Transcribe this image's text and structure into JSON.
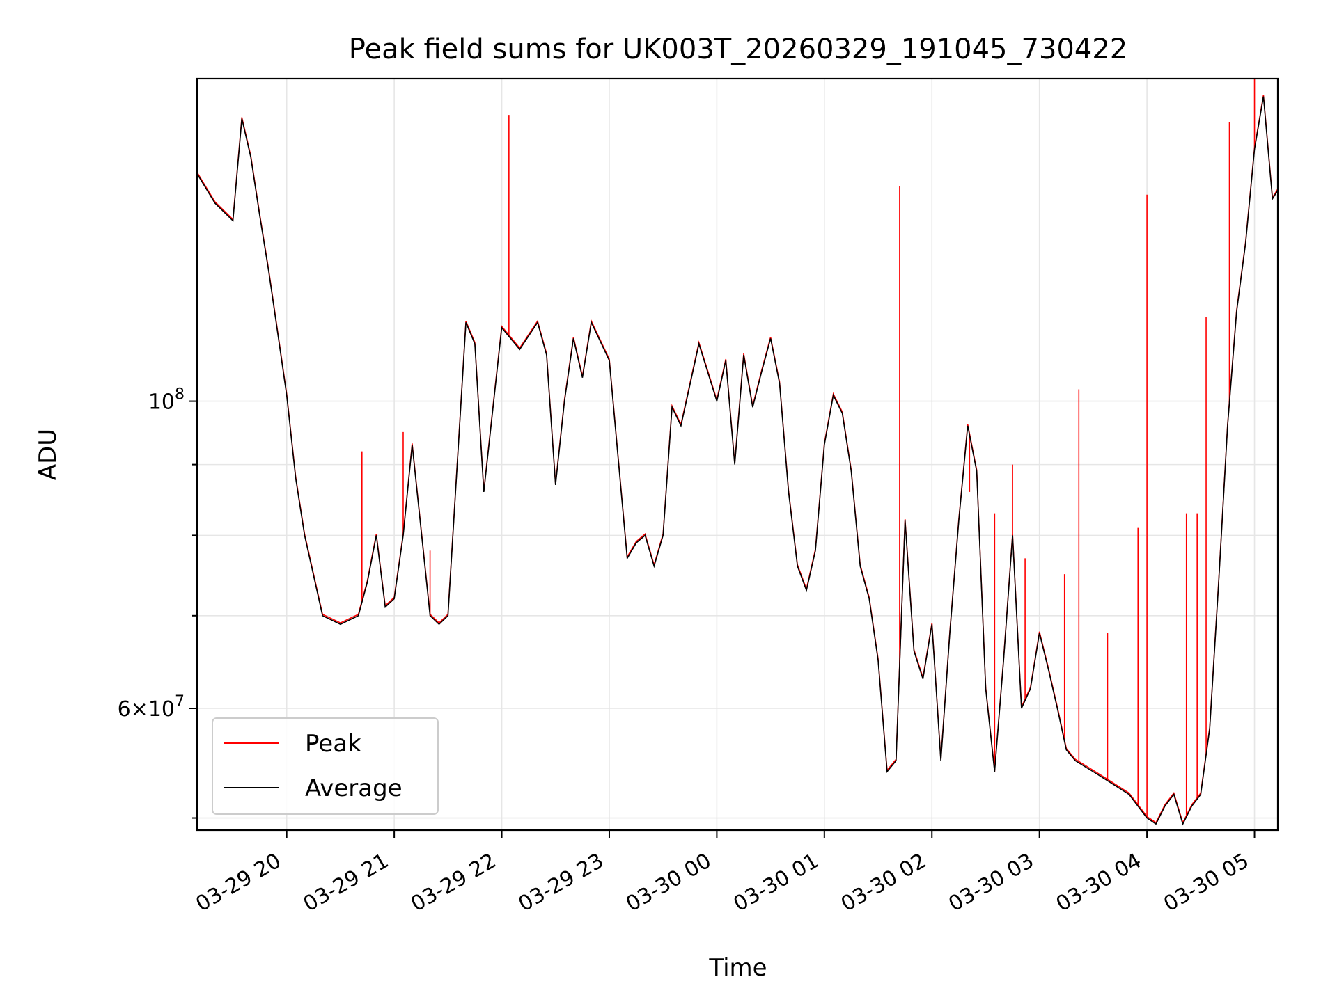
{
  "chart_data": {
    "type": "line",
    "title": "Peak field sums for UK003T_20260329_191045_730422",
    "xlabel": "Time",
    "ylabel": "ADU",
    "yscale": "log",
    "grid": true,
    "legend": "lower-left",
    "xlim": [
      "2026-03-29 19:10",
      "2026-03-30 05:13"
    ],
    "ylim": [
      49000000,
      171000000
    ],
    "x_ticks": [
      "03-29 20",
      "03-29 21",
      "03-29 22",
      "03-29 23",
      "03-30 00",
      "03-30 01",
      "03-30 02",
      "03-30 03",
      "03-30 04",
      "03-30 05"
    ],
    "y_ticks_major": [
      {
        "value": 100000000,
        "base": "10",
        "exp": "8",
        "coef": ""
      },
      {
        "value": 60000000,
        "base": "10",
        "exp": "7",
        "coef": "6"
      }
    ],
    "y_ticks_minor": [
      50000000,
      70000000,
      80000000,
      90000000
    ],
    "colors": {
      "peak": "#ff0000",
      "average": "#000000"
    },
    "series": [
      {
        "name": "Average",
        "x": [
          "2026-03-29 19:10",
          "2026-03-29 19:20",
          "2026-03-29 19:30",
          "2026-03-29 19:35",
          "2026-03-29 19:40",
          "2026-03-29 19:45",
          "2026-03-29 19:50",
          "2026-03-29 19:55",
          "2026-03-29 20:00",
          "2026-03-29 20:05",
          "2026-03-29 20:10",
          "2026-03-29 20:20",
          "2026-03-29 20:30",
          "2026-03-29 20:40",
          "2026-03-29 20:45",
          "2026-03-29 20:50",
          "2026-03-29 20:55",
          "2026-03-29 21:00",
          "2026-03-29 21:05",
          "2026-03-29 21:10",
          "2026-03-29 21:20",
          "2026-03-29 21:25",
          "2026-03-29 21:30",
          "2026-03-29 21:40",
          "2026-03-29 21:45",
          "2026-03-29 21:50",
          "2026-03-29 22:00",
          "2026-03-29 22:10",
          "2026-03-29 22:20",
          "2026-03-29 22:25",
          "2026-03-29 22:30",
          "2026-03-29 22:35",
          "2026-03-29 22:40",
          "2026-03-29 22:45",
          "2026-03-29 22:50",
          "2026-03-29 23:00",
          "2026-03-29 23:10",
          "2026-03-29 23:15",
          "2026-03-29 23:20",
          "2026-03-29 23:25",
          "2026-03-29 23:30",
          "2026-03-29 23:35",
          "2026-03-29 23:40",
          "2026-03-29 23:50",
          "2026-03-30 00:00",
          "2026-03-30 00:05",
          "2026-03-30 00:10",
          "2026-03-30 00:15",
          "2026-03-30 00:20",
          "2026-03-30 00:25",
          "2026-03-30 00:30",
          "2026-03-30 00:35",
          "2026-03-30 00:40",
          "2026-03-30 00:45",
          "2026-03-30 00:50",
          "2026-03-30 00:55",
          "2026-03-30 01:00",
          "2026-03-30 01:05",
          "2026-03-30 01:10",
          "2026-03-30 01:15",
          "2026-03-30 01:20",
          "2026-03-30 01:25",
          "2026-03-30 01:30",
          "2026-03-30 01:35",
          "2026-03-30 01:40",
          "2026-03-30 01:45",
          "2026-03-30 01:50",
          "2026-03-30 01:55",
          "2026-03-30 02:00",
          "2026-03-30 02:05",
          "2026-03-30 02:10",
          "2026-03-30 02:15",
          "2026-03-30 02:20",
          "2026-03-30 02:25",
          "2026-03-30 02:30",
          "2026-03-30 02:35",
          "2026-03-30 02:40",
          "2026-03-30 02:45",
          "2026-03-30 02:50",
          "2026-03-30 02:55",
          "2026-03-30 03:00",
          "2026-03-30 03:05",
          "2026-03-30 03:10",
          "2026-03-30 03:15",
          "2026-03-30 03:20",
          "2026-03-30 03:30",
          "2026-03-30 03:40",
          "2026-03-30 03:50",
          "2026-03-30 04:00",
          "2026-03-30 04:05",
          "2026-03-30 04:10",
          "2026-03-30 04:15",
          "2026-03-30 04:20",
          "2026-03-30 04:25",
          "2026-03-30 04:30",
          "2026-03-30 04:35",
          "2026-03-30 04:40",
          "2026-03-30 04:45",
          "2026-03-30 04:50",
          "2026-03-30 04:55",
          "2026-03-30 05:00",
          "2026-03-30 05:05",
          "2026-03-30 05:10",
          "2026-03-30 05:13"
        ],
        "values": [
          146000000,
          139000000,
          135000000,
          160000000,
          150000000,
          136000000,
          124000000,
          112000000,
          101000000,
          88000000,
          80000000,
          70000000,
          69000000,
          70000000,
          74000000,
          80000000,
          71000000,
          72000000,
          80000000,
          93000000,
          70000000,
          69000000,
          70000000,
          114000000,
          110000000,
          86000000,
          113000000,
          109000000,
          114000000,
          108000000,
          87000000,
          100000000,
          111000000,
          104000000,
          114000000,
          107000000,
          77000000,
          79000000,
          80000000,
          76000000,
          80000000,
          99000000,
          96000000,
          110000000,
          100000000,
          107000000,
          90000000,
          108000000,
          99000000,
          105000000,
          111000000,
          103000000,
          86000000,
          76000000,
          73000000,
          78000000,
          93000000,
          101000000,
          98000000,
          89000000,
          76000000,
          72000000,
          65000000,
          54000000,
          55000000,
          82000000,
          66000000,
          63000000,
          69000000,
          55000000,
          68000000,
          82000000,
          96000000,
          89000000,
          62000000,
          54000000,
          65000000,
          80000000,
          60000000,
          62000000,
          68000000,
          64000000,
          60000000,
          56000000,
          55000000,
          54000000,
          53000000,
          52000000,
          50000000,
          49500000,
          51000000,
          52000000,
          49500000,
          51000000,
          52000000,
          58000000,
          74000000,
          96000000,
          116000000,
          130000000,
          152000000,
          166000000,
          140000000,
          142000000
        ]
      },
      {
        "name": "Peak",
        "x": [
          "2026-03-29 20:42",
          "2026-03-29 21:05",
          "2026-03-29 21:20",
          "2026-03-29 22:04",
          "2026-03-30 01:42",
          "2026-03-30 02:21",
          "2026-03-30 02:35",
          "2026-03-30 02:45",
          "2026-03-30 02:52",
          "2026-03-30 03:14",
          "2026-03-30 03:22",
          "2026-03-30 03:38",
          "2026-03-30 03:55",
          "2026-03-30 04:00",
          "2026-03-30 04:22",
          "2026-03-30 04:28",
          "2026-03-30 04:33",
          "2026-03-30 04:46",
          "2026-03-30 05:00"
        ],
        "values": [
          92000000,
          95000000,
          78000000,
          161000000,
          143000000,
          86000000,
          83000000,
          90000000,
          77000000,
          75000000,
          102000000,
          68000000,
          81000000,
          141000000,
          83000000,
          83000000,
          115000000,
          159000000,
          171000000
        ]
      }
    ]
  }
}
